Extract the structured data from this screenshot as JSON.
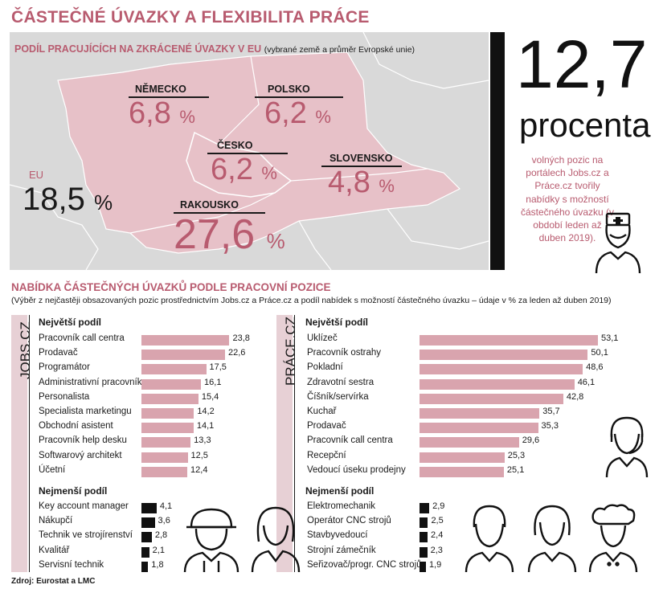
{
  "title": "ČÁSTEČNÉ ÚVAZKY A FLEXIBILITA PRÁCE",
  "map": {
    "subtitle": "PODÍL PRACUJÍCÍCH NA ZKRÁCENÉ ÚVAZKY V EU",
    "note": "(vybrané země a průměr Evropské unie)",
    "countries": [
      {
        "name": "NĚMECKO",
        "value": "6,8",
        "unit": "%"
      },
      {
        "name": "POLSKO",
        "value": "6,2",
        "unit": "%"
      },
      {
        "name": "ČESKO",
        "value": "6,2",
        "unit": "%"
      },
      {
        "name": "SLOVENSKO",
        "value": "4,8",
        "unit": "%"
      },
      {
        "name": "RAKOUSKO",
        "value": "27,6",
        "unit": "%"
      }
    ],
    "eu": {
      "label": "EU",
      "value": "18,5",
      "unit": "%"
    }
  },
  "highlight": {
    "number": "12,7",
    "unit": "procenta",
    "description": "volných pozic na portálech Jobs.cz a Práce.cz tvořily nabídky s možností částečného úvazku (v období leden až duben 2019)."
  },
  "section": {
    "title": "NABÍDKA ČÁSTEČNÝCH ÚVAZKŮ PODLE PRACOVNÍ POZICE",
    "subtitle": "(Výběr z nejčastěji obsazovaných pozic prostřednictvím Jobs.cz a Práce.cz a podíl nabídek s možností částečného úvazku – údaje v % za leden až duben 2019)"
  },
  "source": "Zdroj: Eurostat a LMC",
  "chart_data": [
    {
      "type": "bar",
      "orientation": "horizontal",
      "title": "JOBS.CZ",
      "group_labels": {
        "largest": "Největší podíl",
        "smallest": "Nejmenší podíl"
      },
      "largest": {
        "categories": [
          "Pracovník call centra",
          "Prodavač",
          "Programátor",
          "Administrativní pracovník",
          "Personalista",
          "Specialista marketingu",
          "Obchodní asistent",
          "Pracovník help desku",
          "Softwarový architekt",
          "Účetní"
        ],
        "values": [
          23.8,
          22.6,
          17.5,
          16.1,
          15.4,
          14.2,
          14.1,
          13.3,
          12.5,
          12.4
        ],
        "labels": [
          "23,8",
          "22,6",
          "17,5",
          "16,1",
          "15,4",
          "14,2",
          "14,1",
          "13,3",
          "12,5",
          "12,4"
        ]
      },
      "smallest": {
        "categories": [
          "Key account manager",
          "Nákupčí",
          "Technik ve strojírenství",
          "Kvalitář",
          "Servisní technik"
        ],
        "values": [
          4.1,
          3.6,
          2.8,
          2.1,
          1.8
        ],
        "labels": [
          "4,1",
          "3,6",
          "2,8",
          "2,1",
          "1,8"
        ]
      },
      "colors": {
        "largest": "#d9a4ae",
        "smallest": "#111111"
      }
    },
    {
      "type": "bar",
      "orientation": "horizontal",
      "title": "PRÁCE.CZ",
      "group_labels": {
        "largest": "Největší podíl",
        "smallest": "Nejmenší podíl"
      },
      "largest": {
        "categories": [
          "Uklízeč",
          "Pracovník ostrahy",
          "Pokladní",
          "Zdravotní sestra",
          "Číšník/servírka",
          "Kuchař",
          "Prodavač",
          "Pracovník call centra",
          "Recepční",
          "Vedoucí úseku prodejny"
        ],
        "values": [
          53.1,
          50.1,
          48.6,
          46.1,
          42.8,
          35.7,
          35.3,
          29.6,
          25.3,
          25.1
        ],
        "labels": [
          "53,1",
          "50,1",
          "48,6",
          "46,1",
          "42,8",
          "35,7",
          "35,3",
          "29,6",
          "25,3",
          "25,1"
        ]
      },
      "smallest": {
        "categories": [
          "Elektromechanik",
          "Operátor CNC strojů",
          "Stavbyvedoucí",
          "Strojní zámečník",
          "Seřizovač/progr. CNC strojů"
        ],
        "values": [
          2.9,
          2.5,
          2.4,
          2.3,
          1.9
        ],
        "labels": [
          "2,9",
          "2,5",
          "2,4",
          "2,3",
          "1,9"
        ]
      },
      "colors": {
        "largest": "#d9a4ae",
        "smallest": "#111111"
      }
    }
  ],
  "icons": [
    "nurse-icon",
    "headset-operator-icon",
    "construction-worker-icon",
    "businesswoman-icon",
    "man-icon",
    "woman-icon",
    "chef-icon"
  ]
}
